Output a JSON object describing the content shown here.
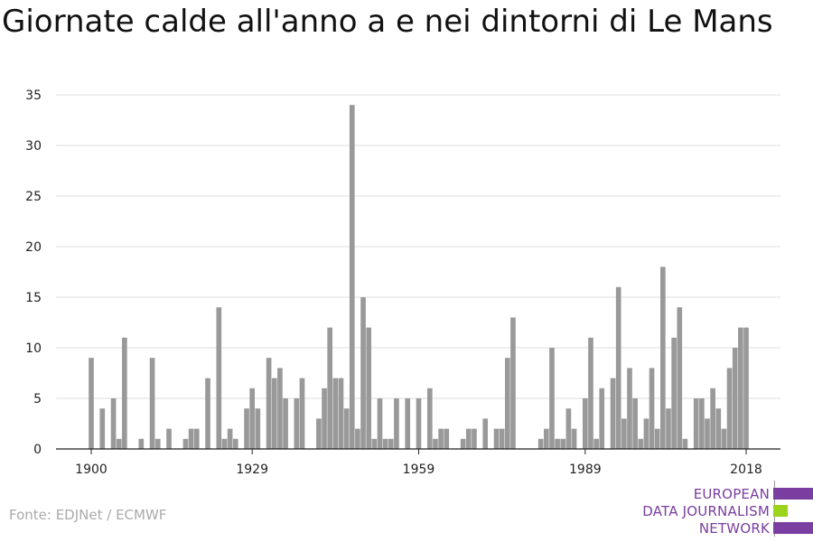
{
  "title": "Giornate calde all'anno a e nei dintorni di Le Mans",
  "source": "Fonte: EDJNet / ECMWF",
  "logo": {
    "line1": "EUROPEAN",
    "line2": "DATA JOURNALISM",
    "line3": "NETWORK",
    "colors": {
      "purple": "#7a3ea0",
      "green": "#9bd31d"
    }
  },
  "colors": {
    "bar": "#999999",
    "grid": "#dddddd",
    "axis": "#222222"
  },
  "chart_data": {
    "type": "bar",
    "title": "Giornate calde all'anno a e nei dintorni di Le Mans",
    "xlabel": "",
    "ylabel": "",
    "ylim": [
      0,
      35
    ],
    "yticks": [
      0,
      5,
      10,
      15,
      20,
      25,
      30,
      35
    ],
    "xticks": [
      1900,
      1929,
      1959,
      1989,
      2018
    ],
    "xlim": [
      1900,
      2018
    ],
    "grid": true,
    "years": [
      1900,
      1901,
      1902,
      1903,
      1904,
      1905,
      1906,
      1907,
      1908,
      1909,
      1910,
      1911,
      1912,
      1913,
      1914,
      1915,
      1916,
      1917,
      1918,
      1919,
      1920,
      1921,
      1922,
      1923,
      1924,
      1925,
      1926,
      1927,
      1928,
      1929,
      1930,
      1931,
      1932,
      1933,
      1934,
      1935,
      1936,
      1937,
      1938,
      1939,
      1940,
      1941,
      1942,
      1943,
      1944,
      1945,
      1946,
      1947,
      1948,
      1949,
      1950,
      1951,
      1952,
      1953,
      1954,
      1955,
      1956,
      1957,
      1958,
      1959,
      1960,
      1961,
      1962,
      1963,
      1964,
      1965,
      1966,
      1967,
      1968,
      1969,
      1970,
      1971,
      1972,
      1973,
      1974,
      1975,
      1976,
      1977,
      1978,
      1979,
      1980,
      1981,
      1982,
      1983,
      1984,
      1985,
      1986,
      1987,
      1988,
      1989,
      1990,
      1991,
      1992,
      1993,
      1994,
      1995,
      1996,
      1997,
      1998,
      1999,
      2000,
      2001,
      2002,
      2003,
      2004,
      2005,
      2006,
      2007,
      2008,
      2009,
      2010,
      2011,
      2012,
      2013,
      2014,
      2015,
      2016,
      2017,
      2018
    ],
    "values": [
      9,
      0,
      4,
      0,
      5,
      1,
      11,
      0,
      0,
      1,
      0,
      9,
      1,
      0,
      2,
      0,
      0,
      1,
      2,
      2,
      0,
      7,
      0,
      14,
      1,
      2,
      1,
      0,
      4,
      6,
      4,
      0,
      9,
      7,
      8,
      5,
      0,
      5,
      7,
      0,
      0,
      3,
      6,
      12,
      7,
      7,
      4,
      34,
      2,
      15,
      12,
      1,
      5,
      1,
      1,
      5,
      0,
      5,
      0,
      5,
      0,
      6,
      1,
      2,
      2,
      0,
      0,
      1,
      2,
      2,
      0,
      3,
      0,
      2,
      2,
      9,
      13,
      0,
      0,
      0,
      0,
      1,
      2,
      10,
      1,
      1,
      4,
      2,
      0,
      5,
      11,
      1,
      6,
      0,
      7,
      16,
      3,
      8,
      5,
      1,
      3,
      8,
      2,
      18,
      4,
      11,
      14,
      1,
      0,
      5,
      5,
      3,
      6,
      4,
      2,
      8,
      10,
      12,
      12
    ]
  }
}
